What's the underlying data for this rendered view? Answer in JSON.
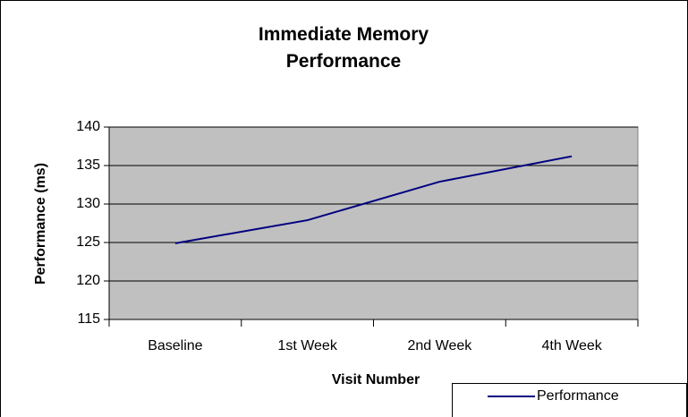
{
  "chart_data": {
    "type": "line",
    "title": "Immediate Memory Performance",
    "xlabel": "Visit Number",
    "ylabel": "Performance (ms)",
    "categories": [
      "Baseline",
      "1st Week",
      "2nd Week",
      "4th Week"
    ],
    "series": [
      {
        "name": "Performance",
        "color": "#000080",
        "values": [
          124.9,
          127.9,
          132.9,
          136.2
        ]
      }
    ],
    "ylim": [
      115,
      140
    ],
    "yticks": [
      115,
      120,
      125,
      130,
      135,
      140
    ],
    "grid": true,
    "legend": "bottom-right"
  }
}
